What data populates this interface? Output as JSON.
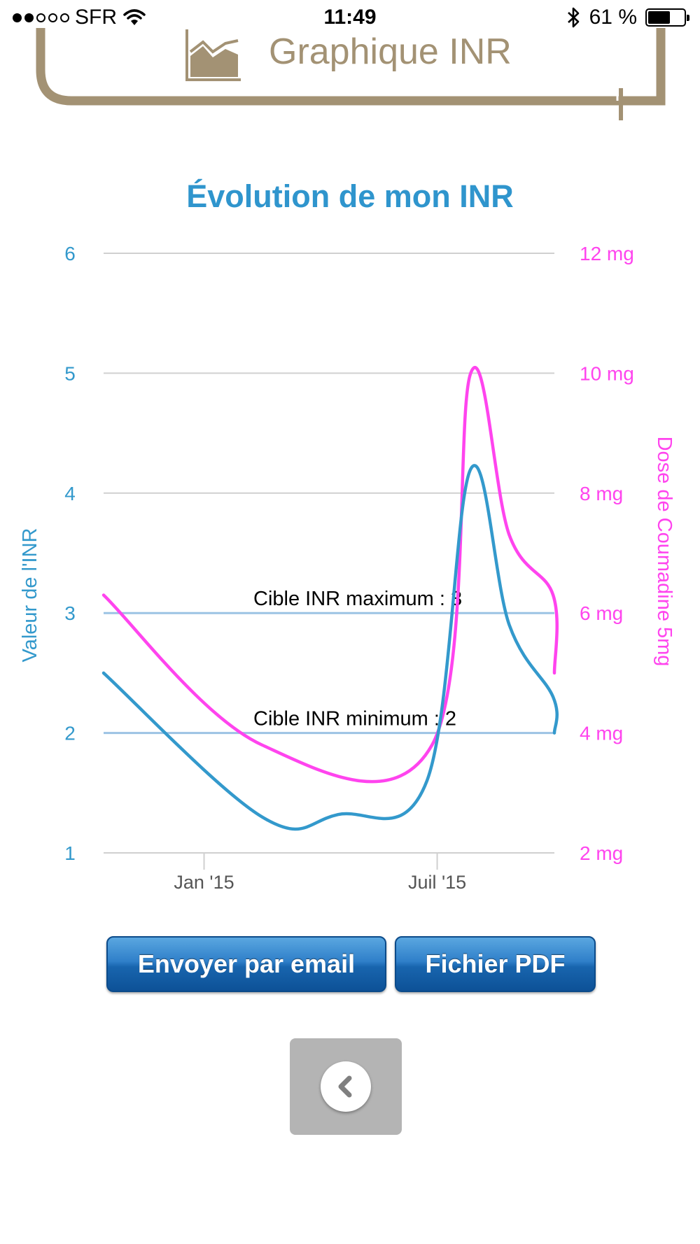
{
  "status_bar": {
    "carrier": "SFR",
    "time": "11:49",
    "battery_percent": "61 %",
    "battery_level": 0.61,
    "signal_bars_filled": 2,
    "signal_bars_total": 5
  },
  "header": {
    "title": "Graphique INR",
    "icon": "chart-icon"
  },
  "chart_data": {
    "type": "line",
    "title": "Évolution de mon INR",
    "ylabel": "Valeur de l'INR",
    "y2label": "Dose de Coumadine 5mg",
    "ylim": [
      1,
      6
    ],
    "y2lim": [
      2,
      12
    ],
    "y_ticks": [
      "1",
      "2",
      "3",
      "4",
      "5",
      "6"
    ],
    "y2_ticks": [
      "2 mg",
      "4 mg",
      "6 mg",
      "8 mg",
      "10 mg",
      "12 mg"
    ],
    "x_ticks": [
      {
        "label": "Jan '15",
        "date": "2015-01-01"
      },
      {
        "label": "Juil '15",
        "date": "2015-07-01"
      }
    ],
    "grid": true,
    "plot_bands": [
      {
        "label": "Cible INR maximum : 3",
        "value": 3
      },
      {
        "label": "Cible INR minimum : 2",
        "value": 2
      }
    ],
    "series": [
      {
        "axis": "left",
        "color": "#3399cc",
        "points": [
          [
            "2014-10-15",
            2.5
          ],
          [
            "2015-02-15",
            1.3
          ],
          [
            "2015-04-15",
            1.32
          ],
          [
            "2015-06-23",
            1.6
          ],
          [
            "2015-07-27",
            4.2
          ],
          [
            "2015-08-26",
            2.9
          ],
          [
            "2015-09-29",
            2.3
          ],
          [
            "2015-09-30",
            2.0
          ]
        ]
      },
      {
        "axis": "right",
        "color": "#ff44ee",
        "points": [
          [
            "2014-10-15",
            6.3
          ],
          [
            "2015-02-15",
            3.8
          ],
          [
            "2015-06-27",
            3.8
          ],
          [
            "2015-07-27",
            10.0
          ],
          [
            "2015-08-26",
            7.3
          ],
          [
            "2015-09-29",
            6.3
          ],
          [
            "2015-09-30",
            5.0
          ]
        ]
      }
    ]
  },
  "actions": {
    "email_label": "Envoyer par email",
    "pdf_label": "Fichier PDF",
    "back_icon": "back-chevron-icon"
  },
  "colors": {
    "header_brown": "#a39274",
    "title_blue": "#2f95cd",
    "inr_blue": "#3399cc",
    "dose_magenta": "#ff44ee",
    "target_line": "#9cc3e4",
    "grid": "#d0d0d0"
  }
}
